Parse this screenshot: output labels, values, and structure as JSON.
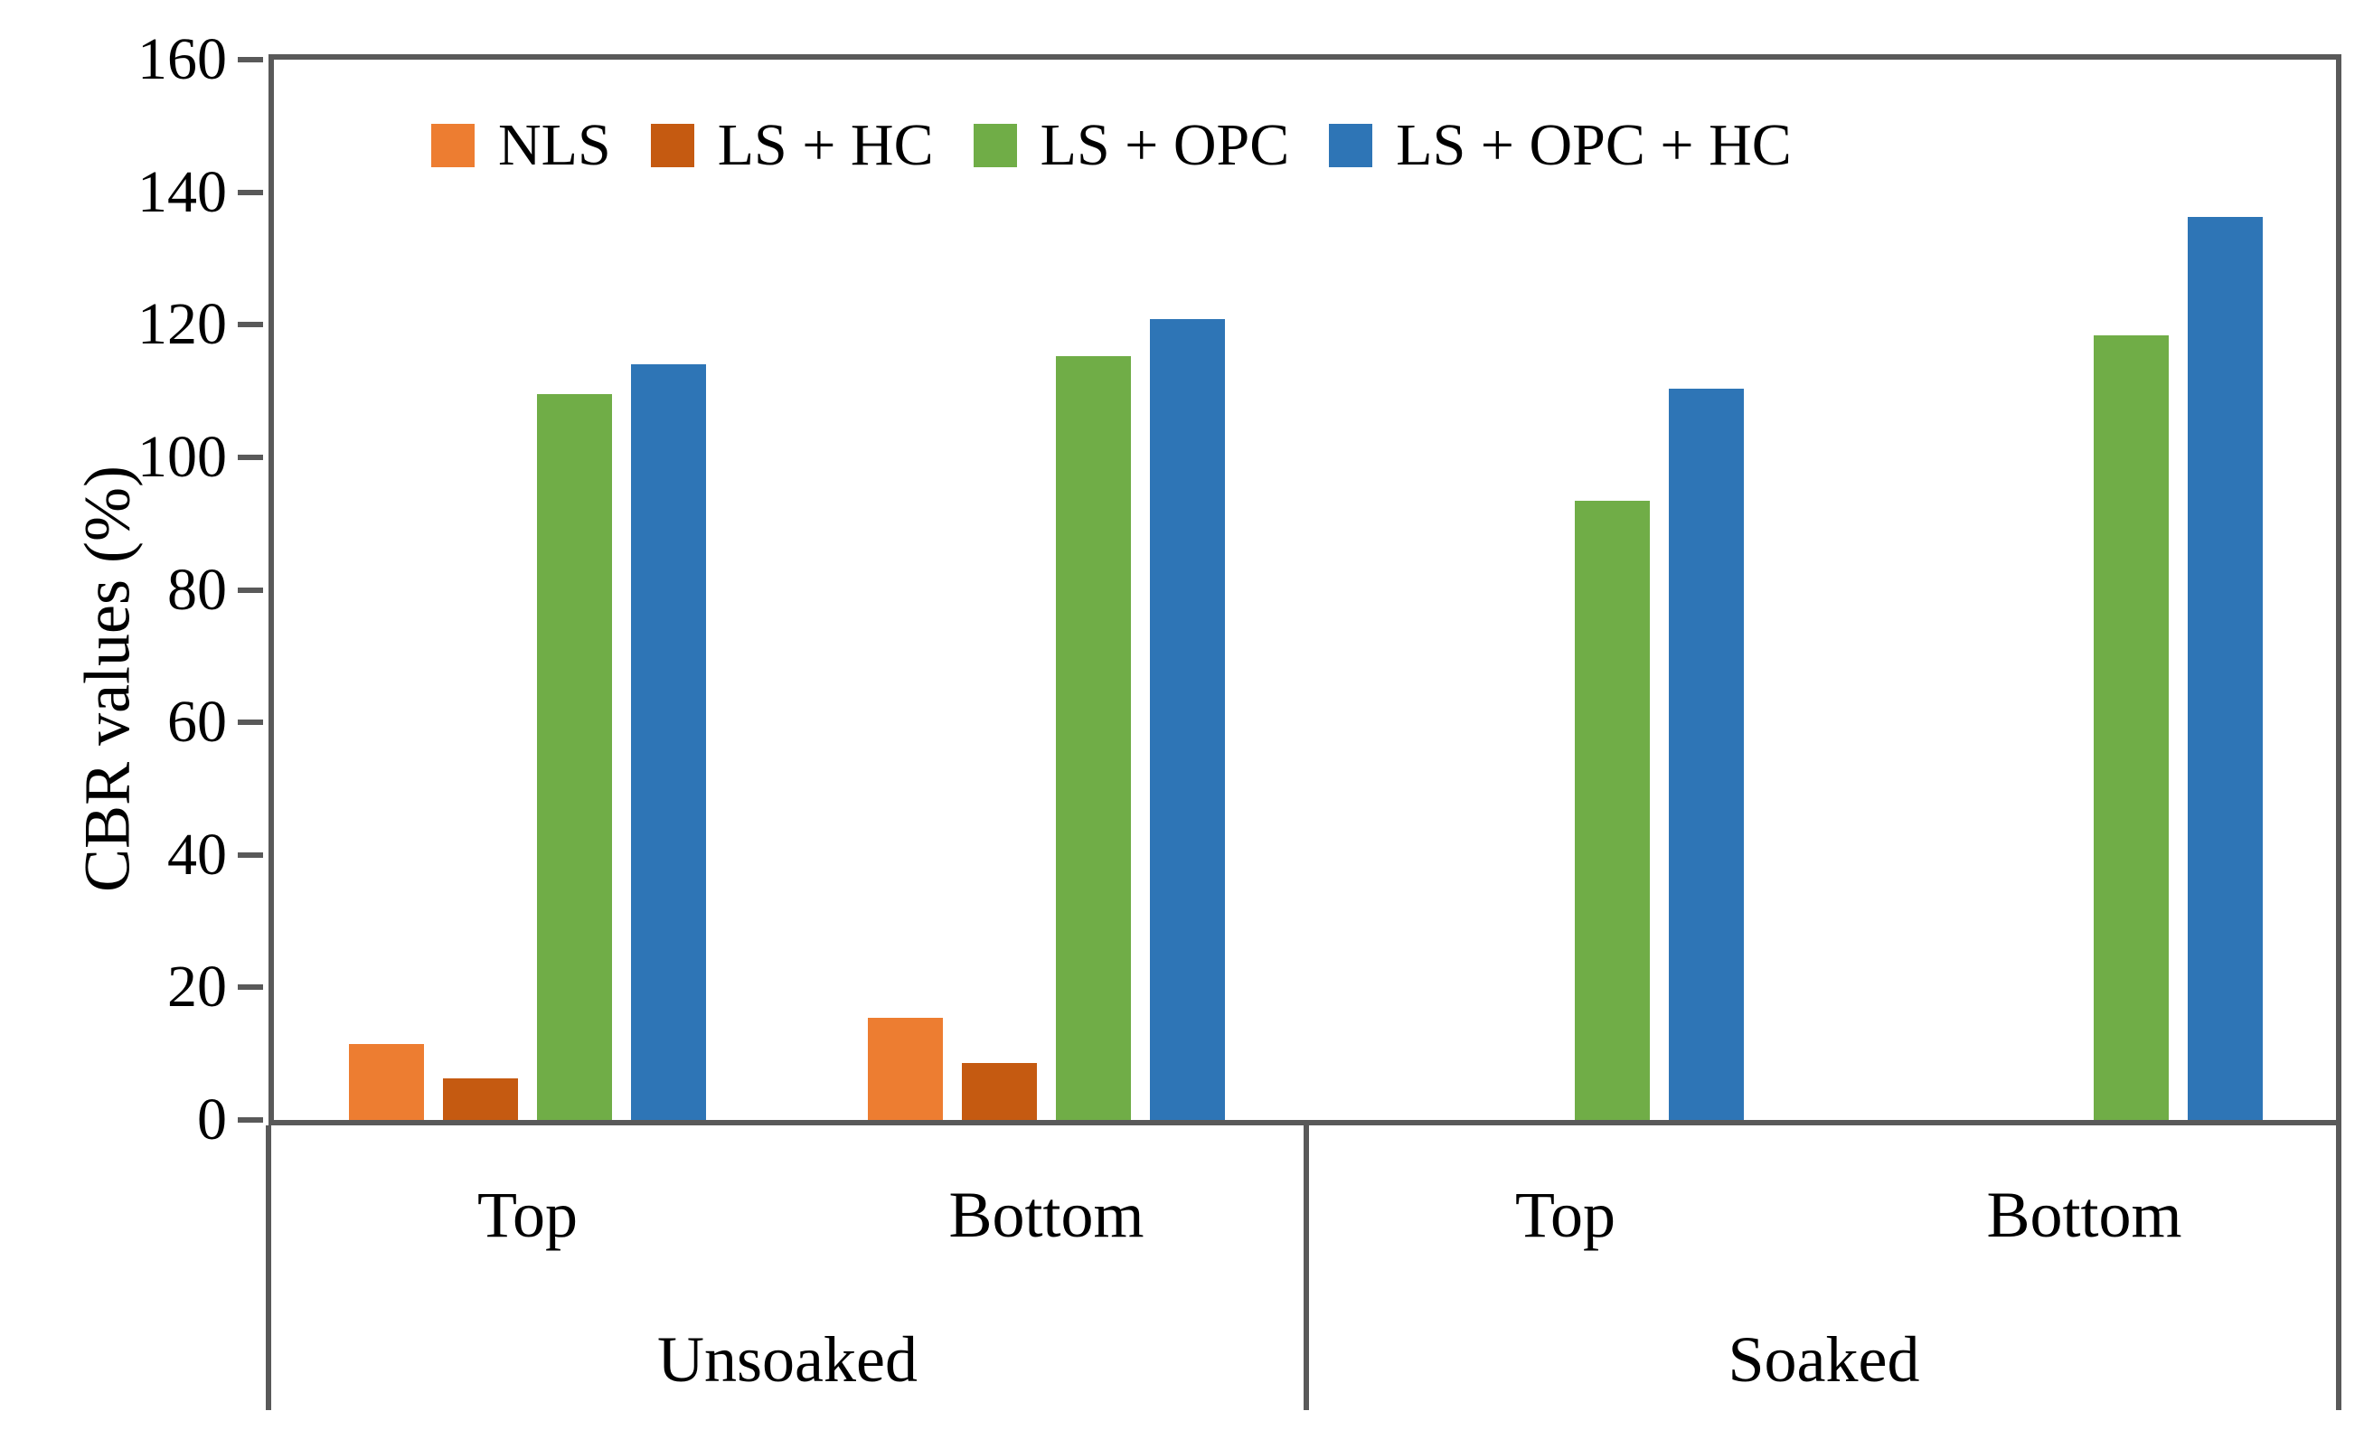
{
  "chart_data": {
    "type": "bar",
    "title": "",
    "ylabel": "CBR values (%)",
    "xlabel": "",
    "ylim": [
      0,
      160
    ],
    "ytick_step": 20,
    "yticks": [
      0,
      20,
      40,
      60,
      80,
      100,
      120,
      140,
      160
    ],
    "grid": false,
    "legend_position": "top-inside",
    "axis_color": "#595959",
    "categories": [
      {
        "group": "Unsoaked",
        "label": "Top"
      },
      {
        "group": "Unsoaked",
        "label": "Bottom"
      },
      {
        "group": "Soaked",
        "label": "Top"
      },
      {
        "group": "Soaked",
        "label": "Bottom"
      }
    ],
    "group_labels": [
      "Unsoaked",
      "Soaked"
    ],
    "series": [
      {
        "name": "NLS",
        "color": "#ED7D31",
        "values": [
          11.5,
          15.4,
          0,
          0
        ]
      },
      {
        "name": "LS + HC",
        "color": "#C55A11",
        "values": [
          6.3,
          8.6,
          0,
          0
        ]
      },
      {
        "name": "LS + OPC",
        "color": "#70AD47",
        "values": [
          109.5,
          115.2,
          93.4,
          118.4
        ]
      },
      {
        "name": "LS + OPC + HC",
        "color": "#2E75B6",
        "values": [
          114.0,
          120.8,
          110.4,
          136.2
        ]
      }
    ]
  }
}
